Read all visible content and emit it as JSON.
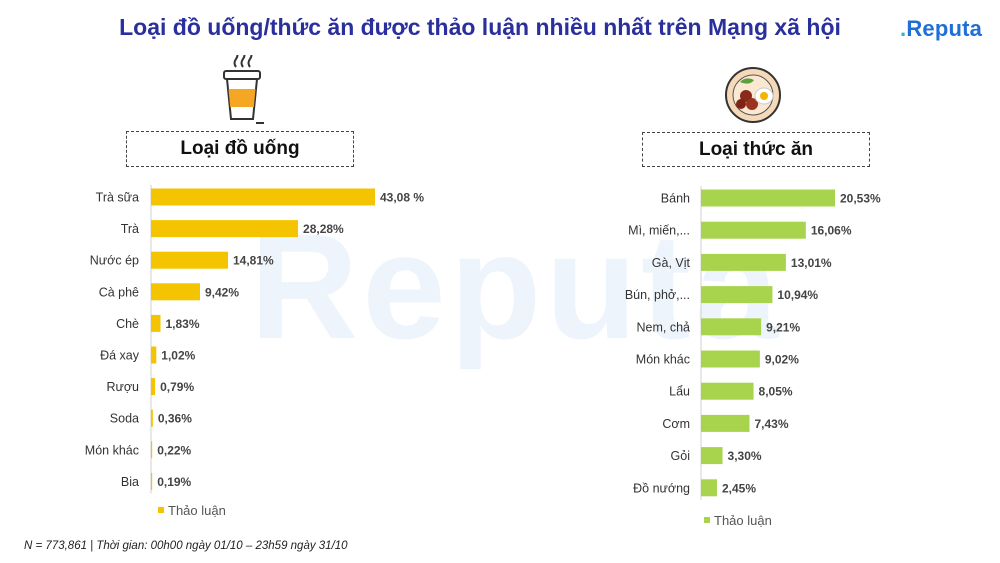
{
  "header": {
    "title": "Loại đồ uống/thức ăn được thảo luận nhiều nhất trên Mạng xã hội",
    "logo_text": "Reputa",
    "logo_mark": "."
  },
  "watermark": "Reputa",
  "icons": {
    "drink": "bubble-tea-cup-icon",
    "food": "food-plate-icon"
  },
  "colors": {
    "drink_bar": "#f5c400",
    "food_bar": "#a8d44d",
    "title": "#2a2f9e",
    "logo": "#1f6fd6"
  },
  "footnote": "N = 773,861 | Thời gian: 00h00 ngày 01/10 – 23h59 ngày 31/10",
  "chart_data": [
    {
      "type": "bar",
      "orientation": "horizontal",
      "title": "Loại đồ uống",
      "categories": [
        "Trà sữa",
        "Trà",
        "Nước ép",
        "Cà phê",
        "Chè",
        "Đá xay",
        "Rượu",
        "Soda",
        "Món khác",
        "Bia"
      ],
      "series": [
        {
          "name": "Thảo luận",
          "values": [
            43.08,
            28.28,
            14.81,
            9.42,
            1.83,
            1.02,
            0.79,
            0.36,
            0.22,
            0.19
          ],
          "labels": [
            "43,08 %",
            "28,28%",
            "14,81%",
            "9,42%",
            "1,83%",
            "1,02%",
            "0,79%",
            "0,36%",
            "0,22%",
            "0,19%"
          ]
        }
      ],
      "grid": false,
      "legend": "bottom"
    },
    {
      "type": "bar",
      "orientation": "horizontal",
      "title": "Loại thức ăn",
      "categories": [
        "Bánh",
        "Mì, miến,...",
        "Gà, Vịt",
        "Bún, phở,...",
        "Nem, chả",
        "Món khác",
        "Lẩu",
        "Cơm",
        "Gỏi",
        "Đồ nướng"
      ],
      "series": [
        {
          "name": "Thảo luận",
          "values": [
            20.53,
            16.06,
            13.01,
            10.94,
            9.21,
            9.02,
            8.05,
            7.43,
            3.3,
            2.45
          ],
          "labels": [
            "20,53%",
            "16,06%",
            "13,01%",
            "10,94%",
            "9,21%",
            "9,02%",
            "8,05%",
            "7,43%",
            "3,30%",
            "2,45%"
          ]
        }
      ],
      "grid": false,
      "legend": "bottom"
    }
  ]
}
